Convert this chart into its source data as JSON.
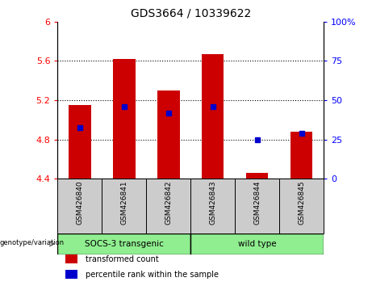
{
  "title": "GDS3664 / 10339622",
  "samples": [
    "GSM426840",
    "GSM426841",
    "GSM426842",
    "GSM426843",
    "GSM426844",
    "GSM426845"
  ],
  "bar_bottoms": [
    4.4,
    4.4,
    4.4,
    4.4,
    4.4,
    4.4
  ],
  "bar_tops": [
    5.15,
    5.62,
    5.3,
    5.67,
    4.46,
    4.88
  ],
  "percentile_values": [
    4.92,
    5.13,
    5.07,
    5.13,
    4.8,
    4.86
  ],
  "ylim_left": [
    4.4,
    6.0
  ],
  "ylim_right": [
    0,
    100
  ],
  "yticks_left": [
    4.4,
    4.8,
    5.2,
    5.6,
    6.0
  ],
  "yticks_right": [
    0,
    25,
    50,
    75,
    100
  ],
  "ytick_labels_left": [
    "4.4",
    "4.8",
    "5.2",
    "5.6",
    "6"
  ],
  "ytick_labels_right": [
    "0",
    "25",
    "50",
    "75",
    "100%"
  ],
  "group_labels": [
    "SOCS-3 transgenic",
    "wild type"
  ],
  "group_sizes": [
    3,
    3
  ],
  "bar_color": "#cc0000",
  "percentile_color": "#0000cc",
  "background_color": "#ffffff",
  "label_area_color": "#cccccc",
  "group_area_color": "#90ee90",
  "legend_items": [
    {
      "label": "transformed count",
      "color": "#cc0000"
    },
    {
      "label": "percentile rank within the sample",
      "color": "#0000cc"
    }
  ],
  "genotype_label": "genotype/variation",
  "bar_width": 0.5
}
